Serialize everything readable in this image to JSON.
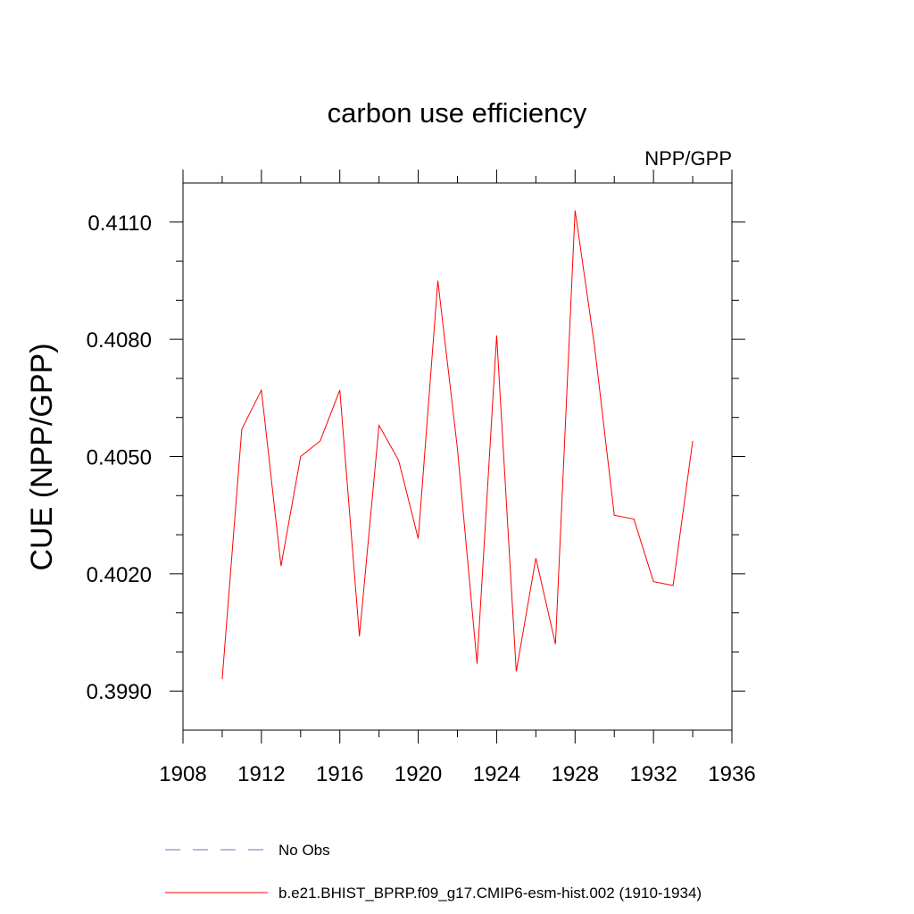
{
  "chart_data": {
    "type": "line",
    "title": "carbon use efficiency",
    "subtitle": "NPP/GPP",
    "xlabel": "",
    "ylabel": "CUE  (NPP/GPP)",
    "xlim": [
      1908,
      1936
    ],
    "ylim": [
      0.398,
      0.412
    ],
    "x_ticks": [
      1908,
      1912,
      1916,
      1920,
      1924,
      1928,
      1932,
      1936
    ],
    "x_tick_labels": [
      "1908",
      "1912",
      "1916",
      "1920",
      "1924",
      "1928",
      "1932",
      "1936"
    ],
    "x_minor_step": 2,
    "y_ticks": [
      0.399,
      0.402,
      0.405,
      0.408,
      0.411
    ],
    "y_tick_labels": [
      "0.3990",
      "0.4020",
      "0.4050",
      "0.4080",
      "0.4110"
    ],
    "y_minor_step": 0.001,
    "grid": false,
    "legend_position": "bottom",
    "series": [
      {
        "name": "b.e21.BHIST_BPRP.f09_g17.CMIP6-esm-hist.002 (1910-1934)",
        "color": "#ff0000",
        "style": "solid",
        "x": [
          1910,
          1911,
          1912,
          1913,
          1914,
          1915,
          1916,
          1917,
          1918,
          1919,
          1920,
          1921,
          1922,
          1923,
          1924,
          1925,
          1926,
          1927,
          1928,
          1929,
          1930,
          1931,
          1932,
          1933,
          1934
        ],
        "y": [
          0.3993,
          0.4057,
          0.4067,
          0.4022,
          0.405,
          0.4054,
          0.4067,
          0.4004,
          0.4058,
          0.4049,
          0.4029,
          0.4095,
          0.4052,
          0.3997,
          0.4081,
          0.3995,
          0.4024,
          0.4002,
          0.4113,
          0.4078,
          0.4035,
          0.4034,
          0.4018,
          0.4017,
          0.4054
        ]
      }
    ],
    "legend": [
      {
        "label": "No Obs",
        "color": "#7a6cc0",
        "style": "dashed"
      },
      {
        "label": "b.e21.BHIST_BPRP.f09_g17.CMIP6-esm-hist.002 (1910-1934)",
        "color": "#ff0000",
        "style": "solid"
      }
    ]
  }
}
